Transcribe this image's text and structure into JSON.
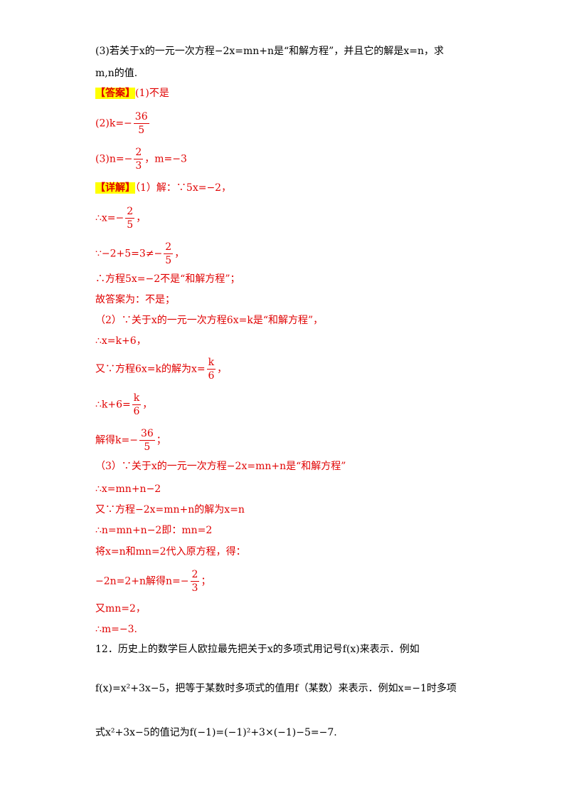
{
  "lines": {
    "q3_a": "(3)若关于x的一元一次方程−2x=mn+n是“和解方程”，并且它的解是x=n，求",
    "q3_b": "m,n的值.",
    "answer_tag": "【答案】",
    "ans1": "(1)不是",
    "ans2_pre": "(2)k=−",
    "ans2_num": "36",
    "ans2_den": "5",
    "ans3_pre": "(3)n=−",
    "ans3_num": "2",
    "ans3_den": "3",
    "ans3_post": "，m=−3",
    "detail_tag": "【详解】",
    "d1": "（1）解：∵5x=−2，",
    "d2_pre": "∴x=−",
    "d2_num": "2",
    "d2_den": "5",
    "d2_post": "，",
    "d3_pre": "∵−2+5=3≠−",
    "d3_num": "2",
    "d3_den": "5",
    "d3_post": "，",
    "d4": "∴方程5x=−2不是“和解方程”；",
    "d5": "故答案为：不是；",
    "d6": "（2）∵关于x的一元一次方程6x=k是“和解方程”，",
    "d7": "∴x=k+6，",
    "d8_pre": "又∵方程6x=k的解为x=",
    "d8_num": "k",
    "d8_den": "6",
    "d8_post": "，",
    "d9_pre": "∴k+6=",
    "d9_num": "k",
    "d9_den": "6",
    "d9_post": "，",
    "d10_pre": "解得k=−",
    "d10_num": "36",
    "d10_den": "5",
    "d10_post": "；",
    "d11": "（3）∵关于x的一元一次方程−2x=mn+n是“和解方程”",
    "d12": "∴x=mn+n−2",
    "d13": "又∵方程−2x=mn+n的解为x=n",
    "d14": "∴n=mn+n−2即：mn=2",
    "d15": "将x=n和mn=2代入原方程，得：",
    "d16_pre": "−2n=2+n解得n=−",
    "d16_num": "2",
    "d16_den": "3",
    "d16_post": "；",
    "d17": "又mn=2，",
    "d18": "∴m=−3.",
    "q12_a": "12．历史上的数学巨人欧拉最先把关于x的多项式用记号f(x)来表示．例如",
    "q12_b": "f(x)=x²+3x−5，把等于某数时多项式的值用f（某数）来表示．例如x=−1时多项",
    "q12_c": "式x²+3x−5的值记为f(−1)=(−1)²+3×(−1)−5=−7."
  }
}
